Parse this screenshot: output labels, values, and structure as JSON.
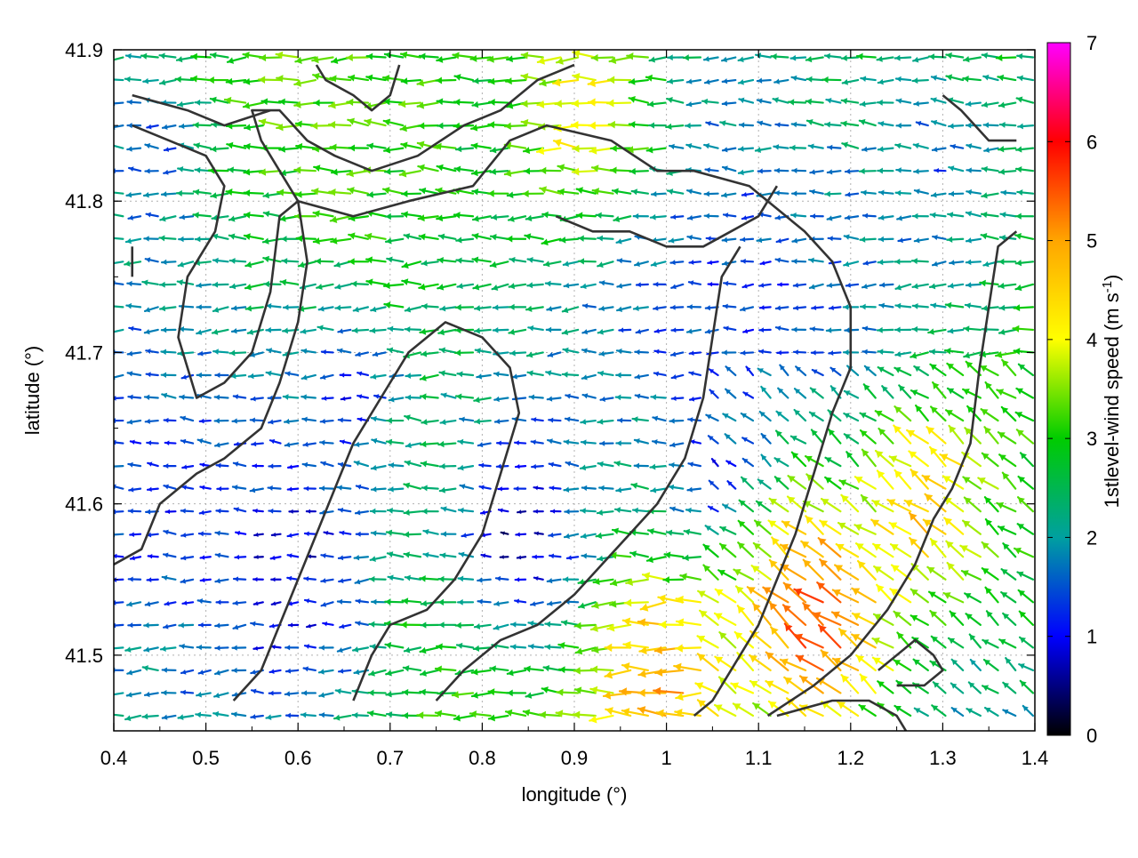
{
  "chart_data": {
    "type": "vector_field",
    "title": "",
    "xlabel": "longitude (°)",
    "ylabel": "latitude (°)",
    "xlim": [
      0.4,
      1.4
    ],
    "ylim": [
      41.45,
      41.9
    ],
    "x_ticks": [
      "0.4",
      "0.5",
      "0.6",
      "0.7",
      "0.8",
      "0.9",
      "1",
      "1.1",
      "1.2",
      "1.3",
      "1.4"
    ],
    "y_ticks": [
      "41.5",
      "41.6",
      "41.7",
      "41.8",
      "41.9"
    ],
    "grid": true,
    "colorbar": {
      "label_main": "1stlevel-wind speed (m s",
      "label_sup": "-1",
      "label_end": ")",
      "range": [
        0,
        7
      ],
      "ticks": [
        "0",
        "1",
        "2",
        "3",
        "4",
        "5",
        "6",
        "7"
      ],
      "colors": [
        "#000000",
        "#0000ff",
        "#00a0a0",
        "#00cc00",
        "#ffff00",
        "#ffa500",
        "#ff0000",
        "#ff00ff"
      ]
    },
    "wind_field": {
      "grid_step_deg": 0.02,
      "description_direction": "predominantly westward (toward decreasing longitude)",
      "speed_zones": [
        {
          "lon": 1.17,
          "lat": 41.52,
          "radius": 0.09,
          "speed": 5.6
        },
        {
          "lon": 1.0,
          "lat": 41.48,
          "radius": 0.08,
          "speed": 5.0
        },
        {
          "lon": 1.29,
          "lat": 41.6,
          "radius": 0.06,
          "speed": 4.8
        },
        {
          "lon": 0.92,
          "lat": 41.86,
          "radius": 0.08,
          "speed": 4.2
        },
        {
          "lon": 0.78,
          "lat": 41.52,
          "radius": 0.06,
          "speed": 3.3
        },
        {
          "lon": 0.6,
          "lat": 41.55,
          "radius": 0.09,
          "speed": 0.9
        },
        {
          "lon": 0.85,
          "lat": 41.58,
          "radius": 0.08,
          "speed": 0.6
        },
        {
          "lon": 0.66,
          "lat": 41.67,
          "radius": 0.05,
          "speed": 1.1
        },
        {
          "lon": 0.45,
          "lat": 41.83,
          "radius": 0.05,
          "speed": 1.3
        },
        {
          "lon": 1.3,
          "lat": 41.82,
          "radius": 0.07,
          "speed": 1.6
        },
        {
          "lon": 1.05,
          "lat": 41.62,
          "radius": 0.05,
          "speed": 1.2
        }
      ]
    },
    "contours": [
      [
        [
          0.42,
          41.87
        ],
        [
          0.48,
          41.86
        ],
        [
          0.52,
          41.85
        ],
        [
          0.57,
          41.86
        ]
      ],
      [
        [
          0.42,
          41.85
        ],
        [
          0.46,
          41.84
        ],
        [
          0.5,
          41.83
        ],
        [
          0.52,
          41.81
        ],
        [
          0.51,
          41.78
        ],
        [
          0.48,
          41.75
        ],
        [
          0.47,
          41.71
        ],
        [
          0.49,
          41.67
        ],
        [
          0.52,
          41.68
        ],
        [
          0.55,
          41.7
        ],
        [
          0.57,
          41.74
        ],
        [
          0.58,
          41.79
        ],
        [
          0.6,
          41.8
        ],
        [
          0.66,
          41.79
        ],
        [
          0.72,
          41.8
        ],
        [
          0.79,
          41.81
        ],
        [
          0.83,
          41.84
        ],
        [
          0.87,
          41.85
        ],
        [
          0.94,
          41.84
        ],
        [
          0.99,
          41.82
        ],
        [
          1.03,
          41.82
        ],
        [
          1.09,
          41.81
        ],
        [
          1.15,
          41.78
        ],
        [
          1.18,
          41.76
        ],
        [
          1.2,
          41.73
        ],
        [
          1.2,
          41.69
        ],
        [
          1.18,
          41.66
        ],
        [
          1.16,
          41.62
        ],
        [
          1.14,
          41.58
        ],
        [
          1.12,
          41.55
        ],
        [
          1.1,
          41.52
        ],
        [
          1.07,
          41.49
        ],
        [
          1.05,
          41.47
        ],
        [
          1.03,
          41.46
        ]
      ],
      [
        [
          0.42,
          41.75
        ],
        [
          0.42,
          41.77
        ]
      ],
      [
        [
          0.4,
          41.56
        ],
        [
          0.43,
          41.57
        ],
        [
          0.45,
          41.6
        ],
        [
          0.49,
          41.62
        ],
        [
          0.52,
          41.63
        ],
        [
          0.56,
          41.65
        ],
        [
          0.58,
          41.68
        ],
        [
          0.6,
          41.72
        ],
        [
          0.61,
          41.76
        ],
        [
          0.6,
          41.8
        ],
        [
          0.58,
          41.82
        ],
        [
          0.56,
          41.84
        ],
        [
          0.55,
          41.86
        ],
        [
          0.58,
          41.86
        ],
        [
          0.61,
          41.84
        ],
        [
          0.64,
          41.83
        ],
        [
          0.68,
          41.82
        ],
        [
          0.73,
          41.83
        ],
        [
          0.78,
          41.85
        ],
        [
          0.82,
          41.86
        ],
        [
          0.86,
          41.88
        ],
        [
          0.9,
          41.89
        ]
      ],
      [
        [
          0.62,
          41.89
        ],
        [
          0.63,
          41.88
        ],
        [
          0.66,
          41.87
        ],
        [
          0.68,
          41.86
        ],
        [
          0.7,
          41.87
        ],
        [
          0.71,
          41.89
        ]
      ],
      [
        [
          0.53,
          41.47
        ],
        [
          0.56,
          41.49
        ],
        [
          0.58,
          41.52
        ],
        [
          0.6,
          41.55
        ],
        [
          0.62,
          41.58
        ],
        [
          0.64,
          41.61
        ],
        [
          0.66,
          41.64
        ],
        [
          0.69,
          41.67
        ],
        [
          0.72,
          41.7
        ],
        [
          0.76,
          41.72
        ],
        [
          0.8,
          41.71
        ],
        [
          0.83,
          41.69
        ],
        [
          0.84,
          41.66
        ],
        [
          0.82,
          41.62
        ],
        [
          0.8,
          41.58
        ],
        [
          0.77,
          41.55
        ],
        [
          0.74,
          41.53
        ],
        [
          0.7,
          41.52
        ],
        [
          0.68,
          41.5
        ],
        [
          0.66,
          41.47
        ]
      ],
      [
        [
          0.88,
          41.79
        ],
        [
          0.92,
          41.78
        ],
        [
          0.96,
          41.78
        ],
        [
          1.0,
          41.77
        ],
        [
          1.04,
          41.77
        ],
        [
          1.07,
          41.78
        ],
        [
          1.1,
          41.79
        ],
        [
          1.12,
          41.81
        ]
      ],
      [
        [
          0.75,
          41.47
        ],
        [
          0.78,
          41.49
        ],
        [
          0.82,
          41.51
        ],
        [
          0.86,
          41.52
        ],
        [
          0.9,
          41.54
        ],
        [
          0.93,
          41.56
        ],
        [
          0.96,
          41.58
        ],
        [
          0.99,
          41.6
        ],
        [
          1.02,
          41.63
        ],
        [
          1.04,
          41.67
        ],
        [
          1.05,
          41.71
        ],
        [
          1.06,
          41.75
        ],
        [
          1.08,
          41.77
        ]
      ],
      [
        [
          1.11,
          41.46
        ],
        [
          1.16,
          41.48
        ],
        [
          1.2,
          41.5
        ],
        [
          1.24,
          41.53
        ],
        [
          1.27,
          41.56
        ],
        [
          1.29,
          41.59
        ],
        [
          1.31,
          41.61
        ],
        [
          1.33,
          41.64
        ],
        [
          1.34,
          41.69
        ],
        [
          1.35,
          41.73
        ],
        [
          1.36,
          41.77
        ],
        [
          1.38,
          41.78
        ]
      ],
      [
        [
          1.12,
          41.46
        ],
        [
          1.18,
          41.47
        ],
        [
          1.22,
          41.47
        ],
        [
          1.25,
          41.46
        ],
        [
          1.26,
          41.45
        ]
      ],
      [
        [
          1.23,
          41.49
        ],
        [
          1.27,
          41.51
        ],
        [
          1.29,
          41.5
        ],
        [
          1.3,
          41.49
        ],
        [
          1.28,
          41.48
        ],
        [
          1.25,
          41.48
        ]
      ],
      [
        [
          1.3,
          41.87
        ],
        [
          1.32,
          41.86
        ],
        [
          1.35,
          41.84
        ],
        [
          1.38,
          41.84
        ]
      ]
    ]
  }
}
